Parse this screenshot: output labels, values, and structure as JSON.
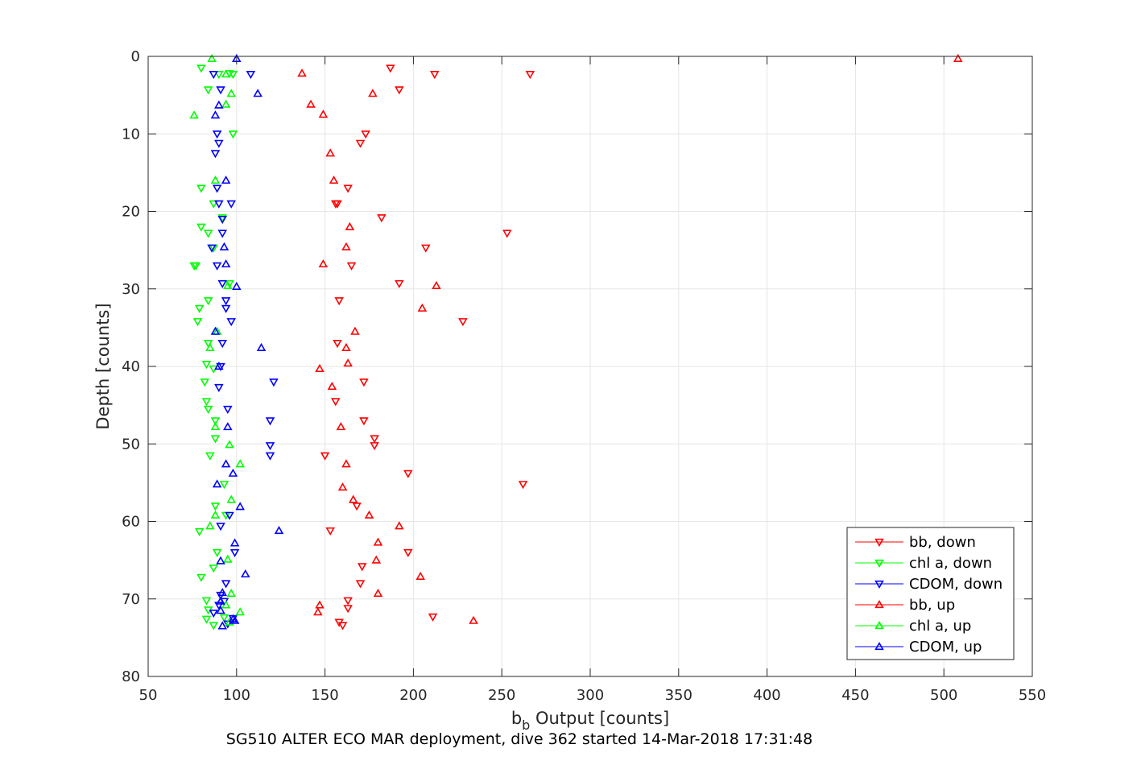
{
  "chart_data": {
    "type": "scatter",
    "title": "",
    "caption": "SG510 ALTER ECO MAR deployment, dive 362 started 14-Mar-2018 17:31:48",
    "xlabel": {
      "base": "b",
      "subscript": "b",
      "rest": " Output [counts]"
    },
    "ylabel": "Depth [counts]",
    "xlim": [
      50,
      550
    ],
    "ylim": [
      0,
      80
    ],
    "y_reversed": true,
    "xticks": [
      50,
      100,
      150,
      200,
      250,
      300,
      350,
      400,
      450,
      500,
      550
    ],
    "yticks": [
      0,
      10,
      20,
      30,
      40,
      50,
      60,
      70,
      80
    ],
    "grid": true,
    "legend_position": "bottom-right",
    "series": [
      {
        "name": "bb, down",
        "color": "#ff0000",
        "marker": "triangle-down",
        "points": [
          [
            187,
            1.5
          ],
          [
            212,
            2.3
          ],
          [
            266,
            2.3
          ],
          [
            192,
            4.3
          ],
          [
            173,
            10
          ],
          [
            170,
            11.2
          ],
          [
            163,
            17
          ],
          [
            157,
            19
          ],
          [
            156,
            19
          ],
          [
            182,
            20.8
          ],
          [
            253,
            22.8
          ],
          [
            207,
            24.7
          ],
          [
            165,
            27
          ],
          [
            192,
            29.3
          ],
          [
            158,
            31.5
          ],
          [
            228,
            34.2
          ],
          [
            157,
            37
          ],
          [
            172,
            42
          ],
          [
            156,
            44.5
          ],
          [
            172,
            47
          ],
          [
            178,
            49.3
          ],
          [
            178,
            50.2
          ],
          [
            150,
            51.5
          ],
          [
            197,
            53.8
          ],
          [
            262,
            55.2
          ],
          [
            168,
            58
          ],
          [
            153,
            61.2
          ],
          [
            197,
            64
          ],
          [
            171,
            65.8
          ],
          [
            170,
            68
          ],
          [
            163,
            70.2
          ],
          [
            163,
            71.2
          ],
          [
            158,
            73
          ],
          [
            160,
            73.4
          ],
          [
            211,
            72.3
          ]
        ]
      },
      {
        "name": "chl a, down",
        "color": "#00ff00",
        "marker": "triangle-down",
        "points": [
          [
            80,
            1.5
          ],
          [
            90,
            2.3
          ],
          [
            96,
            2.2
          ],
          [
            98,
            2.3
          ],
          [
            84,
            4.3
          ],
          [
            98,
            10
          ],
          [
            80,
            17
          ],
          [
            87,
            19
          ],
          [
            92,
            20.8
          ],
          [
            80,
            22
          ],
          [
            84,
            22.8
          ],
          [
            87,
            24.7
          ],
          [
            76,
            27
          ],
          [
            77,
            27
          ],
          [
            96,
            29.3
          ],
          [
            84,
            31.5
          ],
          [
            79,
            32.5
          ],
          [
            78,
            34.2
          ],
          [
            84,
            37
          ],
          [
            83,
            39.7
          ],
          [
            87,
            40.3
          ],
          [
            82,
            42
          ],
          [
            83,
            44.5
          ],
          [
            84,
            45.5
          ],
          [
            88,
            47
          ],
          [
            88,
            49.3
          ],
          [
            85,
            51.5
          ],
          [
            93,
            55.2
          ],
          [
            88,
            58
          ],
          [
            94,
            59.2
          ],
          [
            79,
            61.3
          ],
          [
            89,
            64
          ],
          [
            87,
            66
          ],
          [
            80,
            67.2
          ],
          [
            83,
            70.2
          ],
          [
            84,
            71.4
          ],
          [
            83,
            72.6
          ],
          [
            93,
            72.4
          ],
          [
            87,
            73.4
          ]
        ]
      },
      {
        "name": "CDOM, down",
        "color": "#0000ff",
        "marker": "triangle-down",
        "points": [
          [
            87,
            2.3
          ],
          [
            108,
            2.3
          ],
          [
            91,
            4.3
          ],
          [
            89,
            10
          ],
          [
            90,
            11.2
          ],
          [
            88,
            12.5
          ],
          [
            89,
            17
          ],
          [
            90,
            19
          ],
          [
            97,
            19
          ],
          [
            92,
            21
          ],
          [
            92,
            22.8
          ],
          [
            86,
            24.7
          ],
          [
            89,
            27
          ],
          [
            92,
            29.3
          ],
          [
            94,
            31.5
          ],
          [
            94,
            32.5
          ],
          [
            97,
            34.2
          ],
          [
            92,
            37
          ],
          [
            91,
            40
          ],
          [
            121,
            42
          ],
          [
            90,
            42.7
          ],
          [
            95,
            45.5
          ],
          [
            119,
            47
          ],
          [
            119,
            50.2
          ],
          [
            119,
            51.5
          ],
          [
            96,
            59.2
          ],
          [
            91,
            60.6
          ],
          [
            94,
            68
          ],
          [
            99,
            64
          ],
          [
            91,
            69.5
          ],
          [
            93,
            70.3
          ],
          [
            90,
            70.8
          ],
          [
            87,
            71.8
          ],
          [
            98,
            72.5
          ],
          [
            95,
            73.2
          ]
        ]
      },
      {
        "name": "bb, up",
        "color": "#ff0000",
        "marker": "triangle-up",
        "points": [
          [
            508,
            0.3
          ],
          [
            137,
            2.2
          ],
          [
            177,
            4.8
          ],
          [
            142,
            6.2
          ],
          [
            149,
            7.5
          ],
          [
            153,
            12.5
          ],
          [
            155,
            16
          ],
          [
            164,
            22
          ],
          [
            162,
            24.6
          ],
          [
            149,
            26.8
          ],
          [
            213,
            29.6
          ],
          [
            205,
            32.5
          ],
          [
            167,
            35.5
          ],
          [
            162,
            37.6
          ],
          [
            163,
            39.6
          ],
          [
            147,
            40.3
          ],
          [
            154,
            42.6
          ],
          [
            159,
            47.8
          ],
          [
            162,
            52.6
          ],
          [
            160,
            55.6
          ],
          [
            166,
            57.2
          ],
          [
            175,
            59.2
          ],
          [
            192,
            60.6
          ],
          [
            180,
            62.7
          ],
          [
            179,
            65
          ],
          [
            204,
            67.1
          ],
          [
            180,
            69.3
          ],
          [
            147,
            70.8
          ],
          [
            146,
            71.7
          ],
          [
            234,
            72.8
          ]
        ]
      },
      {
        "name": "chl a, up",
        "color": "#00ff00",
        "marker": "triangle-up",
        "points": [
          [
            86,
            0.3
          ],
          [
            94,
            2.3
          ],
          [
            97,
            4.8
          ],
          [
            94,
            6.2
          ],
          [
            76,
            7.6
          ],
          [
            88,
            16
          ],
          [
            95,
            29.6
          ],
          [
            89,
            35.5
          ],
          [
            85,
            37.6
          ],
          [
            88,
            47.8
          ],
          [
            96,
            50.1
          ],
          [
            102,
            52.6
          ],
          [
            97,
            57.2
          ],
          [
            88,
            59.2
          ],
          [
            85,
            60.6
          ],
          [
            95,
            64.9
          ],
          [
            97,
            69.3
          ],
          [
            94,
            70.8
          ],
          [
            102,
            71.7
          ],
          [
            96,
            73
          ]
        ]
      },
      {
        "name": "CDOM, up",
        "color": "#0000ff",
        "marker": "triangle-up",
        "points": [
          [
            100,
            0.3
          ],
          [
            112,
            4.8
          ],
          [
            90,
            6.3
          ],
          [
            88,
            7.6
          ],
          [
            94,
            16
          ],
          [
            93,
            24.6
          ],
          [
            94,
            26.8
          ],
          [
            100,
            29.7
          ],
          [
            88,
            35.5
          ],
          [
            114,
            37.6
          ],
          [
            90,
            40
          ],
          [
            95,
            47.8
          ],
          [
            94,
            52.6
          ],
          [
            98,
            53.8
          ],
          [
            89,
            55.2
          ],
          [
            102,
            58.1
          ],
          [
            124,
            61.2
          ],
          [
            99,
            62.8
          ],
          [
            91,
            65.1
          ],
          [
            105,
            66.8
          ],
          [
            92,
            69.2
          ],
          [
            91,
            70.3
          ],
          [
            91,
            71.5
          ],
          [
            98,
            72.6
          ],
          [
            99,
            72.8
          ],
          [
            92,
            73.5
          ]
        ]
      }
    ]
  }
}
